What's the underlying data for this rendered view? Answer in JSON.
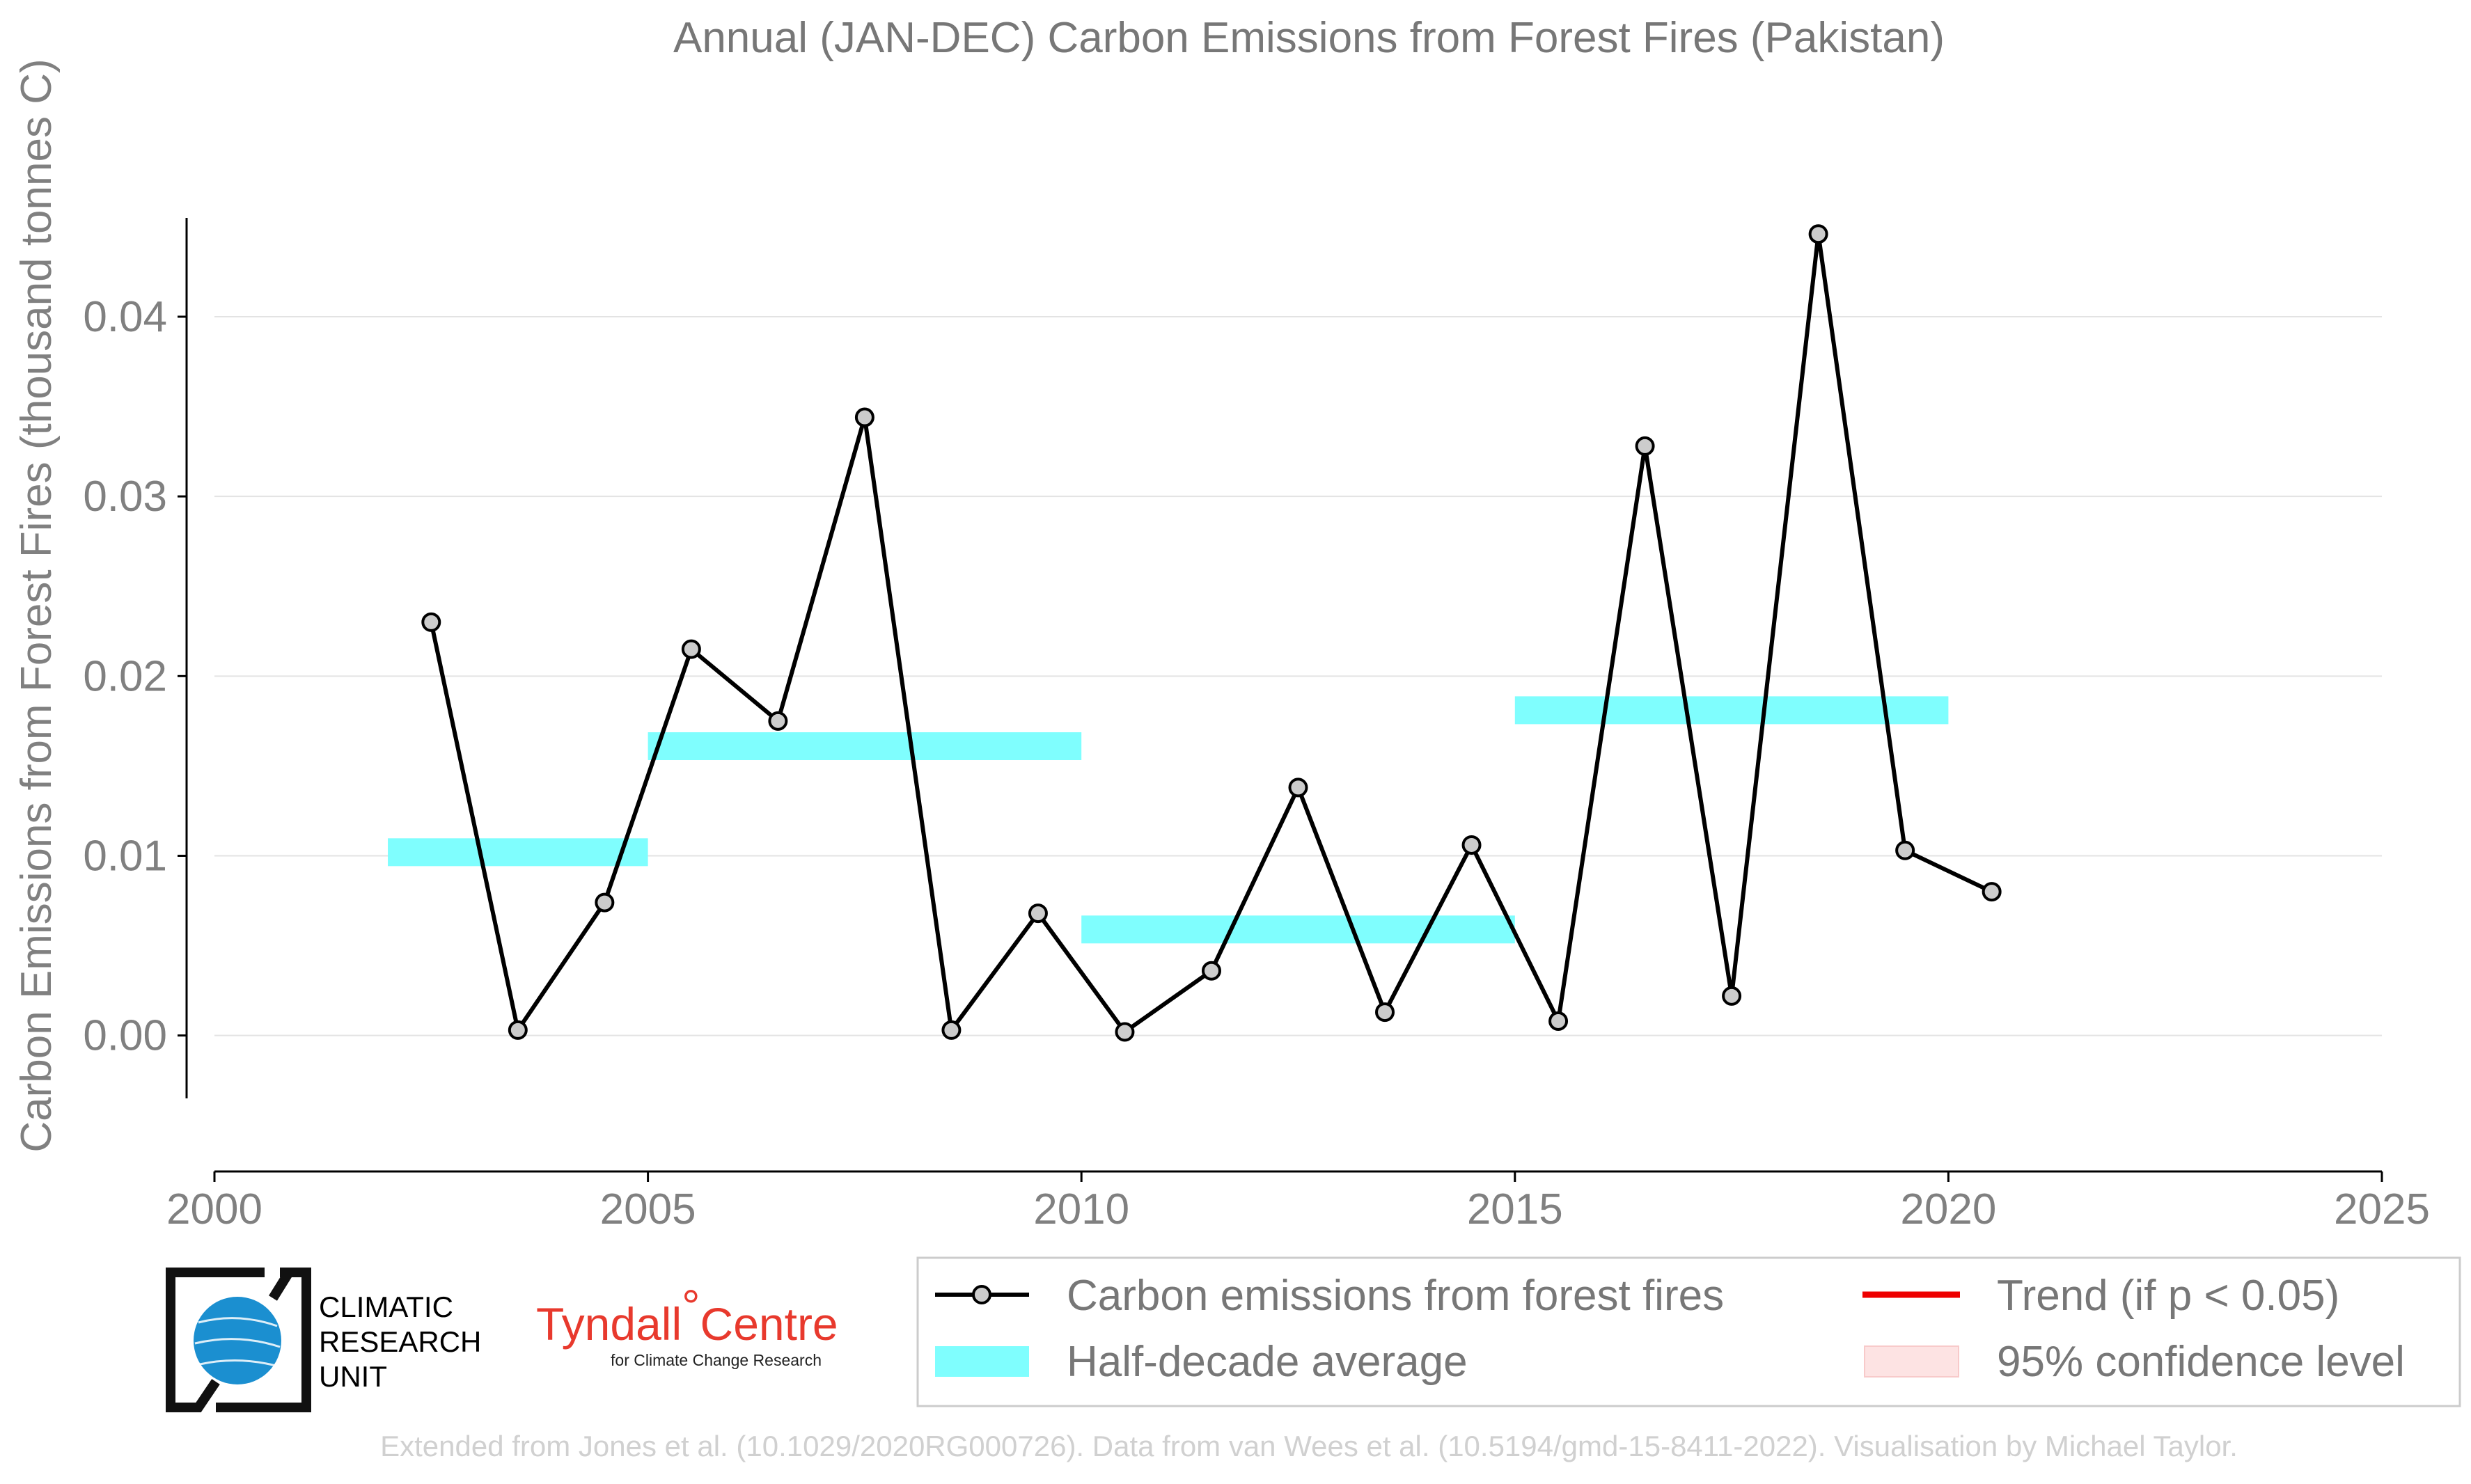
{
  "chart_data": {
    "type": "line",
    "title": "Annual (JAN-DEC) Carbon Emissions from Forest Fires (Pakistan)",
    "ylabel": "Carbon Emissions from Forest Fires (thousand tonnes C)",
    "xlabel": "",
    "xlim": [
      2000,
      2025
    ],
    "ylim": [
      -0.0035,
      0.0455
    ],
    "x_ticks": [
      2000,
      2005,
      2010,
      2015,
      2020,
      2025
    ],
    "x_tick_labels": [
      "2000",
      "2005",
      "2010",
      "2015",
      "2020",
      "2025"
    ],
    "y_ticks": [
      0.0,
      0.01,
      0.02,
      0.03,
      0.04
    ],
    "y_tick_labels": [
      "0.00",
      "0.01",
      "0.02",
      "0.03",
      "0.04"
    ],
    "grid": "horizontal",
    "series": [
      {
        "name": "Carbon emissions from forest fires",
        "color": "#000000",
        "marker_fill": "#cccccc",
        "x": [
          2002.5,
          2003.5,
          2004.5,
          2005.5,
          2006.5,
          2007.5,
          2008.5,
          2009.5,
          2010.5,
          2011.5,
          2012.5,
          2013.5,
          2014.5,
          2015.5,
          2016.5,
          2017.5,
          2018.5,
          2019.5,
          2020.5
        ],
        "values": [
          0.023,
          0.0003,
          0.0074,
          0.0215,
          0.0175,
          0.0344,
          0.0003,
          0.0068,
          0.0002,
          0.0036,
          0.0138,
          0.0013,
          0.0106,
          0.0008,
          0.0328,
          0.0022,
          0.0446,
          0.0103,
          0.008
        ]
      }
    ],
    "half_decade_average": {
      "name": "Half-decade average",
      "color": "#7ffefe",
      "segments": [
        {
          "x0": 2002,
          "x1": 2005,
          "value": 0.0102
        },
        {
          "x0": 2005,
          "x1": 2010,
          "value": 0.0161
        },
        {
          "x0": 2010,
          "x1": 2015,
          "value": 0.0059
        },
        {
          "x0": 2015,
          "x1": 2020,
          "value": 0.0181
        }
      ]
    },
    "legend": {
      "placement": "bottom-right",
      "items": [
        {
          "label": "Carbon emissions from forest fires",
          "kind": "line-marker",
          "color": "#000000"
        },
        {
          "label": "Trend (if p < 0.05)",
          "kind": "line",
          "color": "#ee0000"
        },
        {
          "label": "Half-decade average",
          "kind": "patch",
          "color": "#7ffefe"
        },
        {
          "label": "95% confidence level",
          "kind": "patch",
          "color": "#fde3e3"
        }
      ]
    }
  },
  "logos": {
    "cru": {
      "line1": "CLIMATIC",
      "line2": "RESEARCH",
      "line3": "UNIT"
    },
    "tyndall": {
      "name": "Tyndall",
      "degree": "°",
      "centre": "Centre",
      "tagline": "for Climate Change Research"
    }
  },
  "footer": {
    "credit": "Extended from Jones et al. (10.1029/2020RG000726). Data from van Wees et al. (10.5194/gmd-15-8411-2022). Visualisation by Michael Taylor."
  }
}
